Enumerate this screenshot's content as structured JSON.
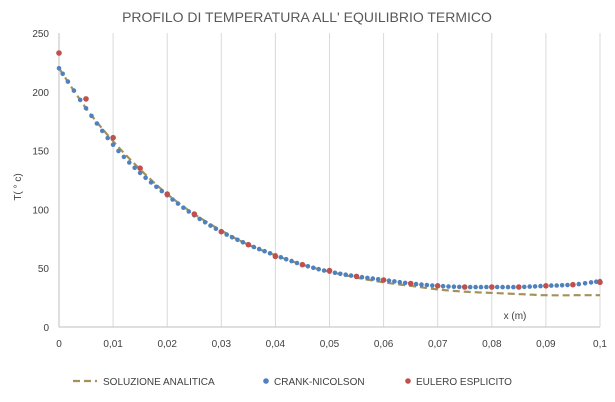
{
  "chart_data": {
    "type": "line",
    "title": "PROFILO DI TEMPERATURA ALL' EQUILIBRIO TERMICO",
    "xlabel": "x (m)",
    "ylabel": "T( ° c)",
    "xlim": [
      0,
      0.1
    ],
    "ylim": [
      0,
      250
    ],
    "x_ticks": [
      0,
      0.01,
      0.02,
      0.03,
      0.04,
      0.05,
      0.06,
      0.07,
      0.08,
      0.09,
      0.1
    ],
    "x_tick_labels": [
      "0",
      "0,01",
      "0,02",
      "0,03",
      "0,04",
      "0,05",
      "0,06",
      "0,07",
      "0,08",
      "0,09",
      "0,1"
    ],
    "y_ticks": [
      0,
      50,
      100,
      150,
      200,
      250
    ],
    "y_tick_labels": [
      "0",
      "50",
      "100",
      "150",
      "200",
      "250"
    ],
    "grid": "vertical",
    "legend_position": "bottom",
    "series": [
      {
        "name": "SOLUZIONE ANALITICA",
        "style": "dashed-line",
        "color": "#A5905A",
        "x": [
          0,
          0.005,
          0.01,
          0.015,
          0.02,
          0.025,
          0.03,
          0.035,
          0.04,
          0.045,
          0.05,
          0.055,
          0.06,
          0.065,
          0.07,
          0.075,
          0.08,
          0.085,
          0.09,
          0.095,
          0.1
        ],
        "y": [
          220,
          186,
          158,
          134,
          113,
          96,
          82,
          70,
          61,
          53,
          47,
          42,
          38,
          35,
          32,
          30,
          29,
          28,
          27,
          27,
          27
        ]
      },
      {
        "name": "CRANK-NICOLSON",
        "style": "markers",
        "color": "#4F81BD",
        "x": [
          0,
          0.005,
          0.01,
          0.015,
          0.02,
          0.025,
          0.03,
          0.035,
          0.04,
          0.045,
          0.05,
          0.055,
          0.06,
          0.065,
          0.07,
          0.075,
          0.08,
          0.085,
          0.09,
          0.095,
          0.1
        ],
        "y": [
          220,
          186,
          155,
          131,
          112,
          95,
          81,
          70,
          61,
          53,
          47,
          43,
          40,
          37,
          35,
          34,
          34,
          34,
          35,
          36,
          39
        ]
      },
      {
        "name": "EULERO ESPLICITO",
        "style": "markers",
        "color": "#C0504D",
        "x": [
          0,
          0.005,
          0.01,
          0.015,
          0.02,
          0.025,
          0.03,
          0.035,
          0.04,
          0.045,
          0.05,
          0.055,
          0.06,
          0.065,
          0.07,
          0.075,
          0.08,
          0.085,
          0.09,
          0.095,
          0.1
        ],
        "y": [
          233,
          194,
          161,
          135,
          113,
          96,
          81,
          70,
          60,
          53,
          48,
          43,
          40,
          37,
          35,
          34,
          34,
          34,
          35,
          36,
          38
        ]
      }
    ]
  }
}
